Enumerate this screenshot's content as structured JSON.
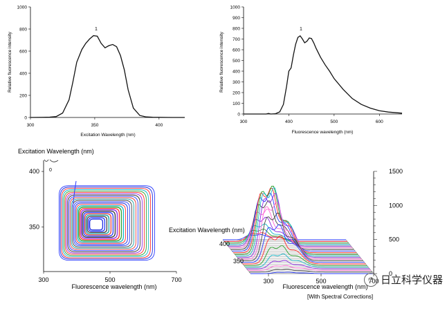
{
  "chart_data": [
    {
      "type": "line",
      "title": "",
      "xlabel": "Excitation Wavelength  (nm)",
      "ylabel": "Relative fluorescence intensity",
      "xlim": [
        300,
        420
      ],
      "ylim": [
        0,
        1000
      ],
      "x_ticks": [
        "300",
        "350",
        "400"
      ],
      "y_ticks": [
        "0",
        "200",
        "400",
        "600",
        "800",
        "1000"
      ],
      "peak_label": "1",
      "series": [
        {
          "x": [
            300,
            310,
            315,
            320,
            325,
            330,
            333,
            336,
            340,
            343,
            346,
            349,
            352,
            355,
            358,
            361,
            364,
            367,
            370,
            373,
            376,
            380,
            385,
            390,
            395,
            400,
            410,
            420
          ],
          "values": [
            0,
            1,
            3,
            8,
            40,
            160,
            320,
            500,
            615,
            670,
            710,
            740,
            735,
            670,
            630,
            650,
            660,
            640,
            560,
            430,
            250,
            85,
            18,
            5,
            2,
            1,
            0,
            0
          ]
        }
      ]
    },
    {
      "type": "line",
      "title": "",
      "xlabel": "Fluorescence wavelength (nm)",
      "ylabel": "Relative fluorescence intensity",
      "xlim": [
        300,
        650
      ],
      "ylim": [
        0,
        1000
      ],
      "x_ticks": [
        "300",
        "400",
        "500",
        "600"
      ],
      "y_ticks": [
        "0",
        "100",
        "200",
        "300",
        "400",
        "500",
        "600",
        "700",
        "800",
        "900",
        "1000"
      ],
      "peak_label": "1",
      "series": [
        {
          "x": [
            300,
            340,
            350,
            355,
            360,
            370,
            380,
            388,
            395,
            400,
            405,
            410,
            415,
            420,
            425,
            430,
            435,
            440,
            445,
            450,
            455,
            460,
            470,
            480,
            490,
            500,
            520,
            540,
            560,
            580,
            600,
            620,
            650
          ],
          "values": [
            0,
            0,
            0,
            5,
            0,
            2,
            20,
            90,
            260,
            400,
            430,
            550,
            650,
            715,
            730,
            700,
            665,
            680,
            710,
            705,
            665,
            615,
            530,
            460,
            400,
            330,
            230,
            145,
            90,
            55,
            30,
            18,
            8
          ]
        }
      ]
    },
    {
      "type": "contour",
      "title": "",
      "xlabel": "Fluorescence wavelength (nm)",
      "ylabel": "Excitation Wavelength  (nm)",
      "xlim": [
        300,
        700
      ],
      "ylim": [
        310,
        410
      ],
      "x_ticks": [
        "300",
        "500",
        "700"
      ],
      "y_ticks": [
        "350",
        "400"
      ],
      "corner_label": "0"
    },
    {
      "type": "surface",
      "title": "",
      "xlabel": "Fluorescence wavelength (nm)",
      "ylabel": "Excitation Wavelength  (nm)",
      "x_ticks": [
        "300",
        "500",
        "700"
      ],
      "y_ticks": [
        "350",
        "400"
      ],
      "z_ticks": [
        "0",
        "500",
        "1000",
        "1500"
      ],
      "zlim": [
        0,
        1500
      ],
      "note": "[With Spectral Corrections]"
    }
  ],
  "watermark": {
    "text": "日立科学仪器",
    "icon": "wechat-icon"
  }
}
